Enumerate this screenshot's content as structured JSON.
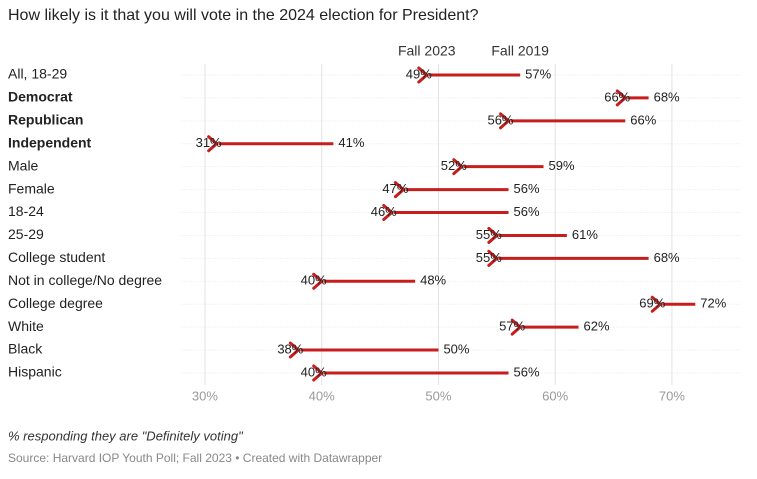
{
  "chart_data": {
    "type": "arrow",
    "title": "How likely is it that you will vote in the 2024 election for President?",
    "note": "% responding they are \"Definitely voting\"",
    "source": "Source: Harvard IOP Youth Poll; Fall 2023 • Created with Datawrapper",
    "categories": [
      "All, 18-29",
      "Democrat",
      "Republican",
      "Independent",
      "Male",
      "Female",
      "18-24",
      "25-29",
      "College student",
      "Not in college/No degree",
      "College degree",
      "White",
      "Black",
      "Hispanic"
    ],
    "series": [
      {
        "name": "Fall 2019",
        "color": "#c71e1d",
        "values": [
          57,
          68,
          66,
          41,
          59,
          56,
          56,
          61,
          68,
          48,
          72,
          62,
          50,
          56
        ],
        "value_labels": [
          "57%",
          "68%",
          "66%",
          "41%",
          "59%",
          "56%",
          "56%",
          "61%",
          "68%",
          "48%",
          "72%",
          "62%",
          "50%",
          "56%"
        ]
      },
      {
        "name": "Fall 2023",
        "color": "#c71e1d",
        "values": [
          49,
          66,
          56,
          31,
          52,
          47,
          46,
          55,
          55,
          40,
          69,
          57,
          38,
          40
        ],
        "value_labels": [
          "49%",
          "66%",
          "56%",
          "31%",
          "52%",
          "47%",
          "46%",
          "55%",
          "55%",
          "40%",
          "69%",
          "57%",
          "38%",
          "40%"
        ]
      }
    ],
    "xlim": [
      28,
      76
    ],
    "xticks": [
      {
        "value": 30,
        "label": "30%"
      },
      {
        "value": 40,
        "label": "40%"
      },
      {
        "value": 50,
        "label": "50%"
      },
      {
        "value": 60,
        "label": "60%"
      },
      {
        "value": 70,
        "label": "70%"
      }
    ],
    "grid": true
  }
}
